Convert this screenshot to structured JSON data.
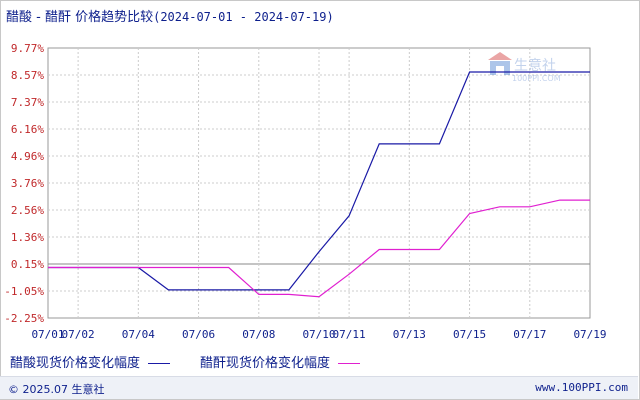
{
  "header": {
    "title": "醋酸 - 醋酐 价格趋势比较",
    "date_range": "(2024-07-01 - 2024-07-19)"
  },
  "watermark": {
    "brand": "生意社",
    "url": "100PPI.COM"
  },
  "footer": {
    "copyright": "© 2025.07 生意社",
    "site": "www.100PPI.com"
  },
  "colors": {
    "series_1": "#1a1aa6",
    "series_2": "#e020d0",
    "axis_label": "#c0282a",
    "x_label": "#0d1f8c",
    "grid": "#cccccc",
    "zero_line": "#888888"
  },
  "chart_data": {
    "type": "line",
    "title": "醋酸 - 醋酐 价格趋势比较",
    "x_tick_labels": [
      "07/01",
      "07/02",
      "07/04",
      "07/06",
      "07/08",
      "07/10",
      "07/11",
      "07/13",
      "07/15",
      "07/17",
      "07/19"
    ],
    "y_tick_labels": [
      "9.77%",
      "8.57%",
      "7.37%",
      "6.16%",
      "4.96%",
      "3.76%",
      "2.56%",
      "1.36%",
      "0.15%",
      "-1.05%",
      "-2.25%"
    ],
    "ylim": [
      -2.25,
      9.77
    ],
    "grid": true,
    "legend_position": "bottom",
    "series": [
      {
        "name": "醋酸现货价格变化幅度",
        "x": [
          "07/01",
          "07/02",
          "07/03",
          "07/04",
          "07/05",
          "07/06",
          "07/07",
          "07/08",
          "07/09",
          "07/10",
          "07/11",
          "07/12",
          "07/13",
          "07/14",
          "07/15",
          "07/16",
          "07/17",
          "07/18",
          "07/19"
        ],
        "values": [
          0,
          0,
          0,
          0,
          -1.0,
          -1.0,
          -1.0,
          -1.0,
          -1.0,
          0.7,
          2.3,
          5.5,
          5.5,
          5.5,
          8.7,
          8.7,
          8.7,
          8.7,
          8.7
        ]
      },
      {
        "name": "醋酐现货价格变化幅度",
        "x": [
          "07/01",
          "07/02",
          "07/03",
          "07/04",
          "07/05",
          "07/06",
          "07/07",
          "07/08",
          "07/09",
          "07/10",
          "07/11",
          "07/12",
          "07/13",
          "07/14",
          "07/15",
          "07/16",
          "07/17",
          "07/18",
          "07/19"
        ],
        "values": [
          0,
          0,
          0,
          0,
          0,
          0,
          0,
          -1.2,
          -1.2,
          -1.3,
          -0.3,
          0.8,
          0.8,
          0.8,
          2.4,
          2.7,
          2.7,
          3.0,
          3.0
        ]
      }
    ]
  }
}
